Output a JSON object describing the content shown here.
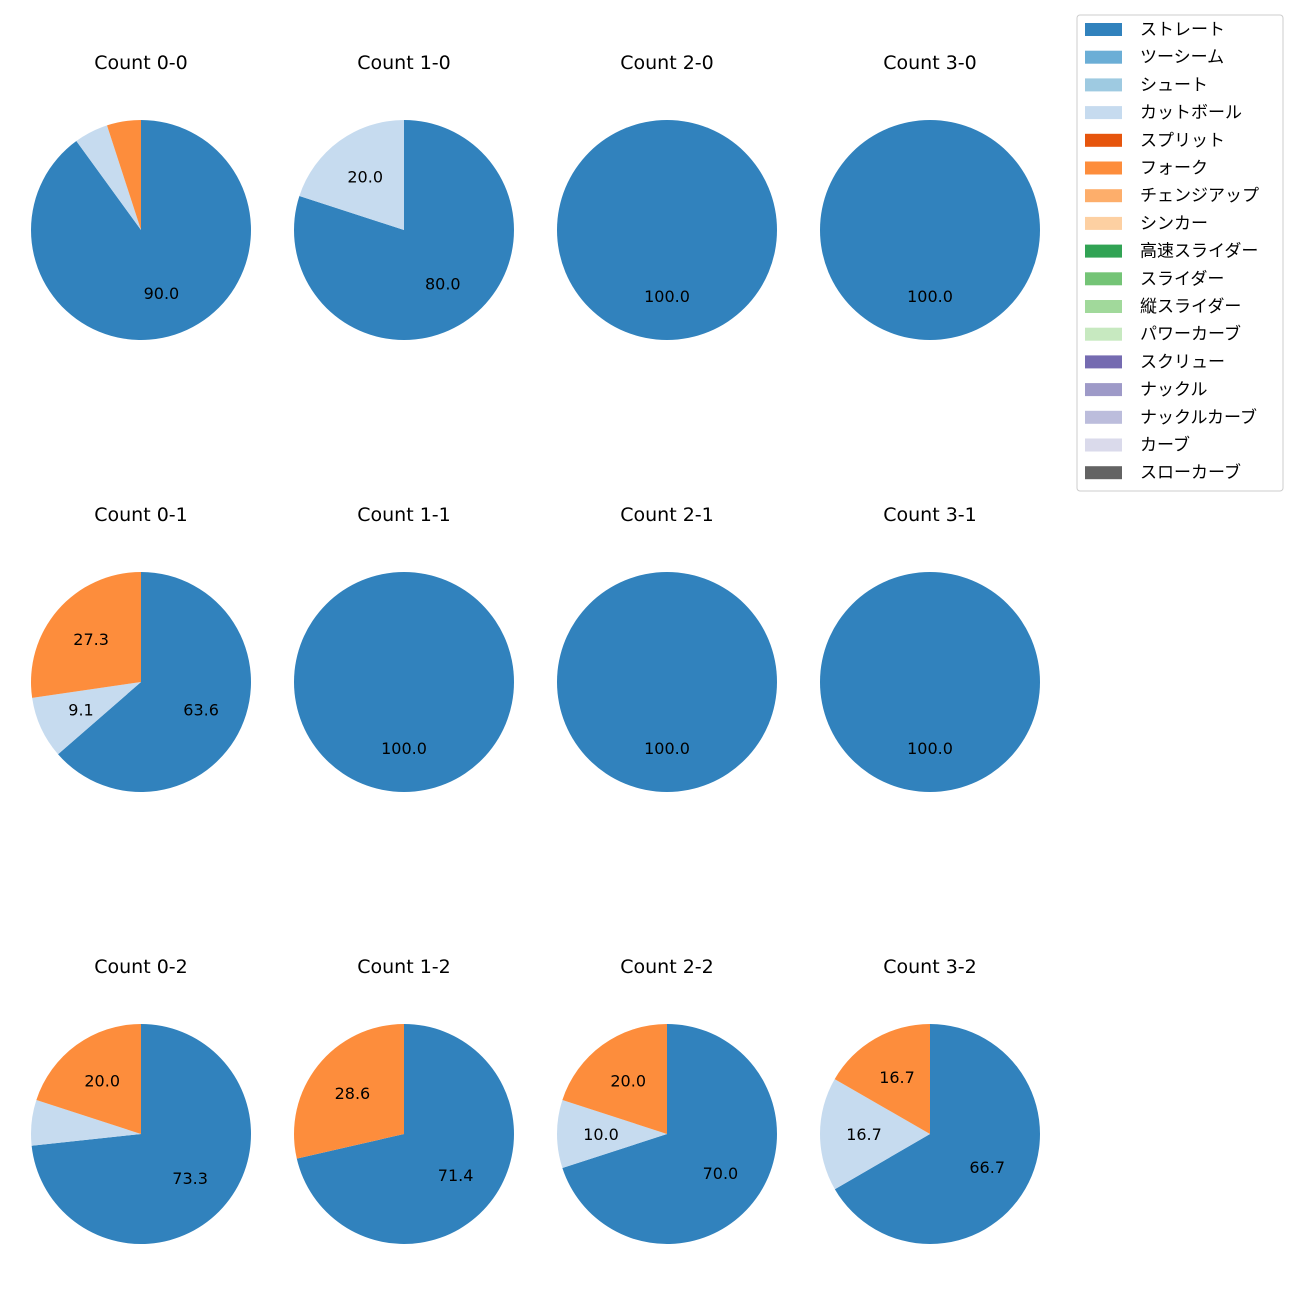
{
  "chart_data": {
    "type": "pie",
    "legend_placement": "top-right",
    "legend": [
      {
        "label": "ストレート",
        "color": "#3182bd"
      },
      {
        "label": "ツーシーム",
        "color": "#6baed6"
      },
      {
        "label": "シュート",
        "color": "#9ecae1"
      },
      {
        "label": "カットボール",
        "color": "#c6dbef"
      },
      {
        "label": "スプリット",
        "color": "#e6550d"
      },
      {
        "label": "フォーク",
        "color": "#fd8d3c"
      },
      {
        "label": "チェンジアップ",
        "color": "#fdae6b"
      },
      {
        "label": "シンカー",
        "color": "#fdd0a2"
      },
      {
        "label": "高速スライダー",
        "color": "#31a354"
      },
      {
        "label": "スライダー",
        "color": "#74c476"
      },
      {
        "label": "縦スライダー",
        "color": "#a1d99b"
      },
      {
        "label": "パワーカーブ",
        "color": "#c7e9c0"
      },
      {
        "label": "スクリュー",
        "color": "#756bb1"
      },
      {
        "label": "ナックル",
        "color": "#9e9ac8"
      },
      {
        "label": "ナックルカーブ",
        "color": "#bcbddc"
      },
      {
        "label": "カーブ",
        "color": "#dadaeb"
      },
      {
        "label": "スローカーブ",
        "color": "#636363"
      }
    ],
    "panels": [
      {
        "title": "Count 0-0",
        "slices": [
          {
            "category": "ストレート",
            "value": 90.0,
            "label": "90.0"
          },
          {
            "category": "カットボール",
            "value": 5.0,
            "label": ""
          },
          {
            "category": "フォーク",
            "value": 5.0,
            "label": ""
          }
        ]
      },
      {
        "title": "Count 1-0",
        "slices": [
          {
            "category": "ストレート",
            "value": 80.0,
            "label": "80.0"
          },
          {
            "category": "カットボール",
            "value": 20.0,
            "label": "20.0"
          }
        ]
      },
      {
        "title": "Count 2-0",
        "slices": [
          {
            "category": "ストレート",
            "value": 100.0,
            "label": "100.0"
          }
        ]
      },
      {
        "title": "Count 3-0",
        "slices": [
          {
            "category": "ストレート",
            "value": 100.0,
            "label": "100.0"
          }
        ]
      },
      {
        "title": "Count 0-1",
        "slices": [
          {
            "category": "ストレート",
            "value": 63.6,
            "label": "63.6"
          },
          {
            "category": "カットボール",
            "value": 9.1,
            "label": "9.1"
          },
          {
            "category": "フォーク",
            "value": 27.3,
            "label": "27.3"
          }
        ]
      },
      {
        "title": "Count 1-1",
        "slices": [
          {
            "category": "ストレート",
            "value": 100.0,
            "label": "100.0"
          }
        ]
      },
      {
        "title": "Count 2-1",
        "slices": [
          {
            "category": "ストレート",
            "value": 100.0,
            "label": "100.0"
          }
        ]
      },
      {
        "title": "Count 3-1",
        "slices": [
          {
            "category": "ストレート",
            "value": 100.0,
            "label": "100.0"
          }
        ]
      },
      {
        "title": "Count 0-2",
        "slices": [
          {
            "category": "ストレート",
            "value": 73.3,
            "label": "73.3"
          },
          {
            "category": "カットボール",
            "value": 6.7,
            "label": ""
          },
          {
            "category": "フォーク",
            "value": 20.0,
            "label": "20.0"
          }
        ]
      },
      {
        "title": "Count 1-2",
        "slices": [
          {
            "category": "ストレート",
            "value": 71.4,
            "label": "71.4"
          },
          {
            "category": "フォーク",
            "value": 28.6,
            "label": "28.6"
          }
        ]
      },
      {
        "title": "Count 2-2",
        "slices": [
          {
            "category": "ストレート",
            "value": 70.0,
            "label": "70.0"
          },
          {
            "category": "カットボール",
            "value": 10.0,
            "label": "10.0"
          },
          {
            "category": "フォーク",
            "value": 20.0,
            "label": "20.0"
          }
        ]
      },
      {
        "title": "Count 3-2",
        "slices": [
          {
            "category": "ストレート",
            "value": 66.7,
            "label": "66.7"
          },
          {
            "category": "カットボール",
            "value": 16.7,
            "label": "16.7"
          },
          {
            "category": "フォーク",
            "value": 16.7,
            "label": "16.7"
          }
        ]
      }
    ]
  }
}
